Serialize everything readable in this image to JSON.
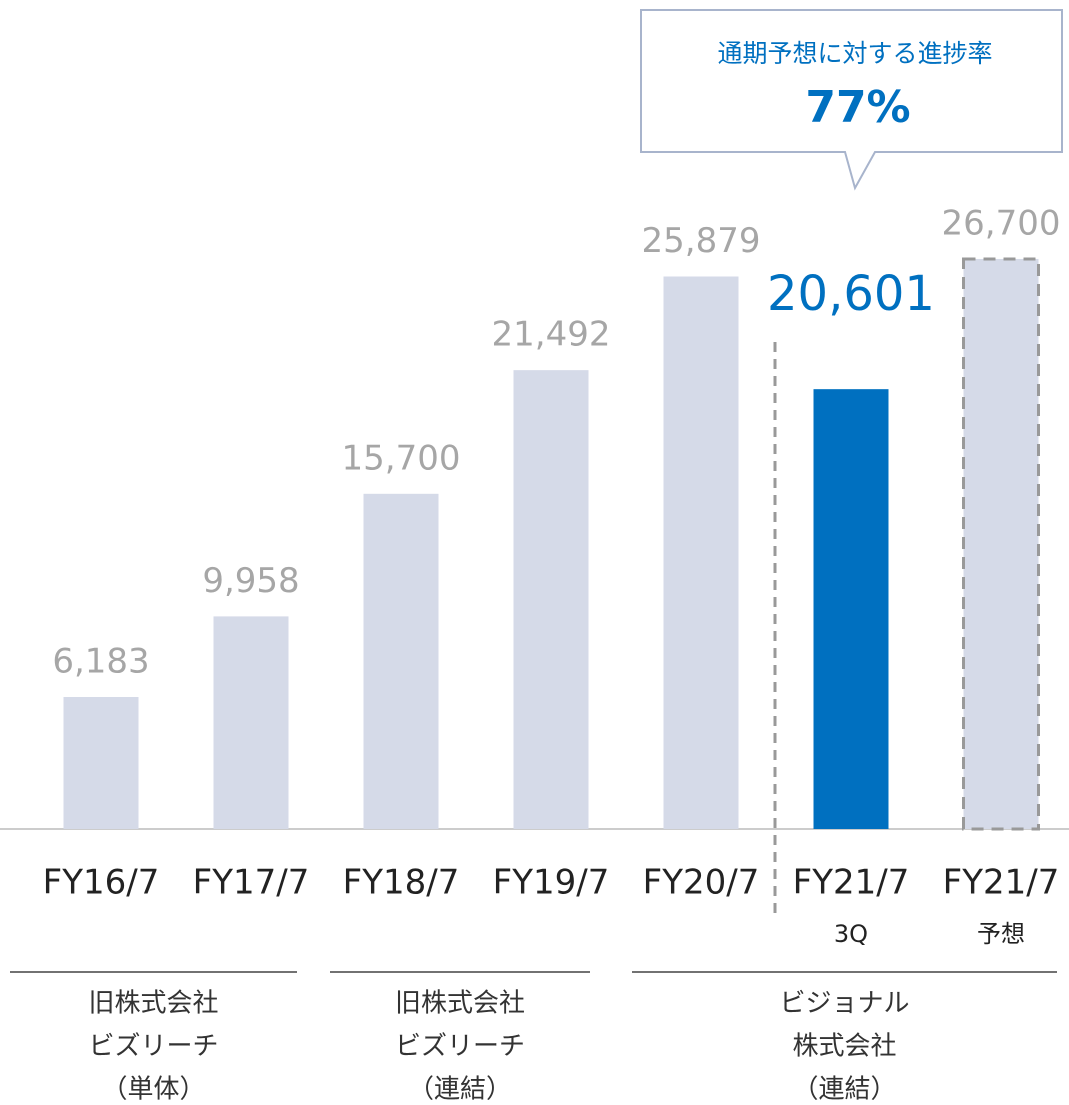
{
  "chart_data": {
    "type": "bar",
    "categories": [
      "FY16/7",
      "FY17/7",
      "FY18/7",
      "FY19/7",
      "FY20/7",
      "FY21/7",
      "FY21/7"
    ],
    "sublabels": [
      null,
      null,
      null,
      null,
      null,
      "3Q",
      "予想"
    ],
    "values": [
      6183,
      9958,
      15700,
      21492,
      25879,
      20601,
      26700
    ],
    "value_labels": [
      "6,183",
      "9,958",
      "15,700",
      "21,492",
      "25,879",
      "20,601",
      "26,700"
    ],
    "colors": [
      "#d5dae8",
      "#d5dae8",
      "#d5dae8",
      "#d5dae8",
      "#d5dae8",
      "#0070c0",
      "#d5dae8"
    ],
    "bar_styles": [
      "solid",
      "solid",
      "solid",
      "solid",
      "solid",
      "solid",
      "dashed"
    ],
    "groups": [
      {
        "lines": [
          "旧株式会社",
          "ビズリーチ",
          "（単体）"
        ]
      },
      {
        "lines": [
          "旧株式会社",
          "ビズリーチ",
          "（連結）"
        ]
      },
      {
        "lines": [
          "ビジョナル",
          "株式会社",
          "（連結）"
        ]
      }
    ],
    "callout": {
      "title": "通期予想に対する進捗率",
      "value": "77%"
    }
  }
}
